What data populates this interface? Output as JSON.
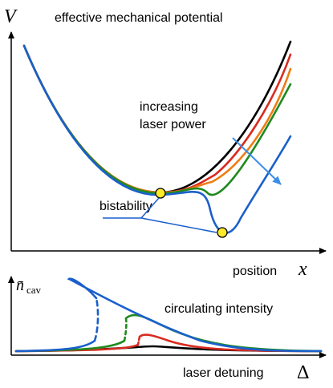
{
  "top_panel": {
    "y_axis_symbol": "V",
    "title": "effective mechanical potential",
    "annotation_lines": [
      "increasing",
      "laser power"
    ],
    "bistability_label": "bistability",
    "x_axis_label": "position",
    "x_axis_symbol": "x"
  },
  "bottom_panel": {
    "y_axis_symbol": "n̄",
    "y_axis_subscript": "cav",
    "annotation": "circulating intensity",
    "x_axis_label": "laser detuning",
    "x_axis_symbol": "Δ"
  }
}
